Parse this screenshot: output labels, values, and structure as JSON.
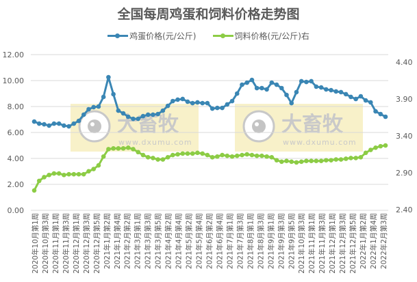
{
  "chart_data": {
    "type": "line",
    "title": "全国每周鸡蛋和饲料价格走势图",
    "legend": [
      {
        "name": "鸡蛋价格(元/公斤)",
        "color": "#3A86B4",
        "axis": "left"
      },
      {
        "name": "饲料价格(元/公斤)右",
        "color": "#8CCC45",
        "axis": "right"
      }
    ],
    "legend_position": "top",
    "grid": true,
    "left_axis": {
      "ticks": [
        "0.00",
        "2.00",
        "4.00",
        "6.00",
        "8.00",
        "10.00",
        "12.00"
      ],
      "range": [
        0,
        12
      ]
    },
    "right_axis": {
      "ticks": [
        "2.40",
        "2.90",
        "3.40",
        "3.90",
        "4.40"
      ],
      "range": [
        2.4,
        4.4
      ]
    },
    "x_tick_labels": [
      "2020年10月第1周",
      "2020年10月第3周",
      "2020年11月第1周",
      "2020年11月第3周",
      "2020年12月第1周",
      "2020年12月第3周",
      "2020年12月第5周",
      "2021年1月第2周",
      "2021年1月第4周",
      "2021年2月第2周",
      "2021年3月第1周",
      "2021年3月第3周",
      "2021年3月第5周",
      "2021年4月第2周",
      "2021年4月第4周",
      "2021年5月第2周",
      "2021年5月第4周",
      "2021年6月第2周",
      "2021年6月第4周",
      "2021年7月第1周",
      "2021年7月第3周",
      "2021年8月第1周",
      "2021年8月第3周",
      "2021年9月第1周",
      "2021年9月第3周",
      "2021年9月第5周",
      "2021年10月第3周",
      "2021年11月第1周",
      "2021年11月第3周",
      "2021年12月第1周",
      "2021年12月第3周",
      "2021年12月第5周",
      "2022年1月第2周",
      "2022年1月第4周",
      "2022年2月第3周"
    ],
    "series": [
      {
        "name": "鸡蛋价格(元/公斤)",
        "axis": "left",
        "values": [
          6.84,
          6.68,
          6.63,
          6.53,
          6.68,
          6.68,
          6.53,
          6.47,
          6.68,
          6.89,
          7.37,
          7.79,
          7.95,
          8.0,
          8.74,
          10.26,
          8.95,
          7.68,
          7.47,
          7.21,
          7.05,
          7.05,
          7.26,
          7.37,
          7.37,
          7.42,
          7.68,
          8.05,
          8.42,
          8.53,
          8.58,
          8.37,
          8.26,
          8.32,
          8.26,
          8.26,
          7.84,
          7.89,
          7.89,
          8.16,
          8.42,
          9.0,
          9.68,
          9.84,
          10.05,
          9.42,
          9.42,
          9.32,
          9.84,
          9.68,
          9.42,
          8.89,
          8.26,
          9.11,
          9.95,
          9.89,
          9.95,
          9.53,
          9.47,
          9.32,
          9.26,
          9.16,
          9.11,
          8.95,
          8.74,
          8.58,
          8.79,
          8.47,
          8.32,
          7.63,
          7.42,
          7.21
        ]
      },
      {
        "name": "饲料价格(元/公斤)右",
        "axis": "right",
        "values": [
          2.66,
          2.79,
          2.84,
          2.87,
          2.89,
          2.89,
          2.87,
          2.88,
          2.88,
          2.88,
          2.88,
          2.92,
          2.95,
          3.0,
          3.12,
          3.22,
          3.23,
          3.23,
          3.23,
          3.24,
          3.22,
          3.18,
          3.14,
          3.11,
          3.1,
          3.08,
          3.08,
          3.11,
          3.14,
          3.15,
          3.16,
          3.16,
          3.16,
          3.17,
          3.16,
          3.14,
          3.11,
          3.12,
          3.14,
          3.13,
          3.12,
          3.13,
          3.14,
          3.15,
          3.14,
          3.13,
          3.13,
          3.12,
          3.11,
          3.07,
          3.05,
          3.06,
          3.05,
          3.04,
          3.05,
          3.06,
          3.06,
          3.06,
          3.06,
          3.07,
          3.07,
          3.08,
          3.08,
          3.09,
          3.1,
          3.1,
          3.11,
          3.17,
          3.21,
          3.24,
          3.26,
          3.27
        ]
      }
    ]
  },
  "watermark": {
    "brand": "大畜牧",
    "url": "www.dxumu.com"
  }
}
